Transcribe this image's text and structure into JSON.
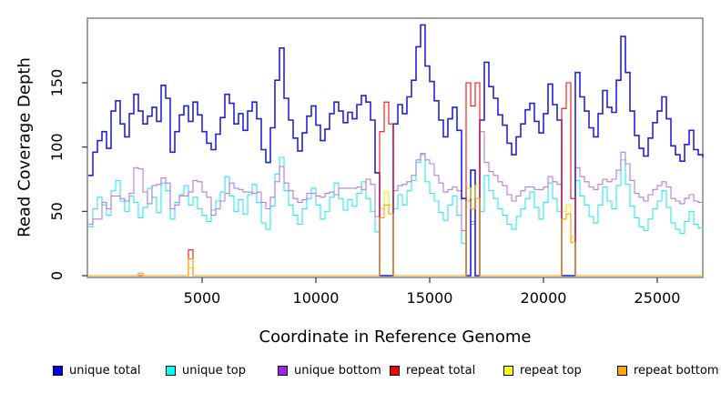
{
  "chart_data": {
    "type": "line",
    "title": "",
    "xlabel": "Coordinate in Reference Genome",
    "ylabel": "Read Coverage Depth",
    "xlim": [
      0,
      27000
    ],
    "ylim": [
      0,
      200
    ],
    "x_ticks": [
      5000,
      10000,
      15000,
      20000,
      25000
    ],
    "y_ticks": [
      0,
      50,
      100,
      150
    ],
    "grid": false,
    "legend_position": "bottom",
    "x_start": 0,
    "x_step": 200,
    "series": [
      {
        "name": "unique total",
        "color": "#2222DD",
        "legend_color": "#0000EE",
        "values": [
          78,
          96,
          105,
          112,
          99,
          128,
          136,
          118,
          108,
          126,
          141,
          128,
          118,
          124,
          131,
          120,
          148,
          138,
          96,
          112,
          125,
          132,
          120,
          135,
          125,
          112,
          103,
          98,
          110,
          123,
          141,
          134,
          118,
          126,
          113,
          128,
          135,
          122,
          98,
          88,
          115,
          152,
          177,
          138,
          121,
          107,
          97,
          111,
          124,
          132,
          117,
          105,
          114,
          126,
          135,
          128,
          119,
          127,
          122,
          133,
          140,
          135,
          121,
          80,
          0,
          0,
          0,
          118,
          133,
          126,
          139,
          152,
          178,
          195,
          163,
          151,
          136,
          121,
          108,
          122,
          131,
          113,
          60,
          0,
          82,
          0,
          121,
          166,
          147,
          138,
          125,
          117,
          103,
          94,
          108,
          118,
          129,
          134,
          120,
          111,
          126,
          149,
          133,
          121,
          0,
          0,
          0,
          158,
          139,
          128,
          115,
          108,
          126,
          144,
          131,
          127,
          152,
          186,
          158,
          128,
          109,
          99,
          93,
          107,
          119,
          128,
          139,
          122,
          101,
          94,
          89,
          102,
          113,
          98,
          94,
          92
        ]
      },
      {
        "name": "unique top",
        "color": "#2BE8F2",
        "legend_color": "#00FFFF",
        "values": [
          38,
          52,
          61,
          55,
          47,
          66,
          74,
          58,
          50,
          62,
          57,
          45,
          53,
          68,
          61,
          49,
          72,
          66,
          44,
          57,
          63,
          70,
          55,
          61,
          52,
          47,
          42,
          51,
          58,
          65,
          77,
          62,
          50,
          59,
          48,
          63,
          71,
          57,
          41,
          36,
          54,
          79,
          92,
          66,
          55,
          47,
          40,
          52,
          60,
          68,
          55,
          44,
          50,
          61,
          72,
          60,
          51,
          59,
          54,
          64,
          73,
          60,
          50,
          34,
          0,
          0,
          0,
          52,
          63,
          55,
          66,
          74,
          88,
          94,
          73,
          64,
          58,
          49,
          43,
          55,
          62,
          47,
          25,
          0,
          40,
          0,
          50,
          78,
          66,
          60,
          52,
          47,
          40,
          36,
          46,
          52,
          60,
          65,
          53,
          44,
          57,
          72,
          60,
          50,
          0,
          0,
          0,
          74,
          62,
          55,
          46,
          41,
          55,
          69,
          58,
          52,
          70,
          90,
          71,
          54,
          45,
          38,
          35,
          44,
          52,
          58,
          66,
          53,
          41,
          36,
          33,
          42,
          50,
          40,
          37,
          36
        ]
      },
      {
        "name": "unique bottom",
        "color": "#B37AE0",
        "legend_color": "#A020F0",
        "values": [
          40,
          44,
          44,
          57,
          52,
          62,
          62,
          60,
          58,
          64,
          84,
          83,
          65,
          56,
          70,
          71,
          76,
          72,
          52,
          55,
          62,
          62,
          65,
          74,
          73,
          65,
          61,
          47,
          52,
          58,
          64,
          72,
          68,
          67,
          65,
          65,
          64,
          65,
          57,
          52,
          61,
          73,
          85,
          72,
          66,
          60,
          57,
          59,
          64,
          64,
          62,
          61,
          64,
          65,
          63,
          68,
          68,
          68,
          68,
          69,
          67,
          75,
          71,
          46,
          0,
          0,
          0,
          66,
          70,
          71,
          73,
          78,
          90,
          95,
          90,
          87,
          78,
          72,
          65,
          67,
          69,
          66,
          35,
          0,
          42,
          0,
          112,
          88,
          81,
          78,
          73,
          70,
          63,
          58,
          62,
          66,
          69,
          69,
          67,
          67,
          69,
          77,
          73,
          71,
          0,
          0,
          0,
          84,
          77,
          73,
          69,
          67,
          71,
          75,
          73,
          75,
          82,
          96,
          87,
          74,
          64,
          61,
          58,
          63,
          67,
          70,
          73,
          69,
          60,
          58,
          56,
          60,
          63,
          58,
          57,
          56
        ]
      },
      {
        "name": "repeat total",
        "color": "#EE1111",
        "legend_color": "#FF0000",
        "default": 0,
        "sparse": {
          "22": 20,
          "64": 112,
          "65": 135,
          "66": 118,
          "83": 150,
          "84": 132,
          "85": 150,
          "104": 130,
          "105": 150,
          "106": 60
        }
      },
      {
        "name": "repeat top",
        "color": "#FFE800",
        "legend_color": "#FFFF00",
        "default": 0,
        "sparse": {
          "22": 6,
          "64": 52,
          "65": 65,
          "66": 55,
          "83": 68,
          "84": 60,
          "85": 70,
          "104": 50,
          "105": 55,
          "106": 30
        }
      },
      {
        "name": "repeat bottom",
        "color": "#FF9D00",
        "legend_color": "#FFA500",
        "default": 0,
        "sparse": {
          "11": 2,
          "22": 13,
          "64": 45,
          "65": 55,
          "66": 48,
          "83": 58,
          "84": 52,
          "85": 60,
          "104": 44,
          "105": 48,
          "106": 26
        }
      }
    ]
  }
}
